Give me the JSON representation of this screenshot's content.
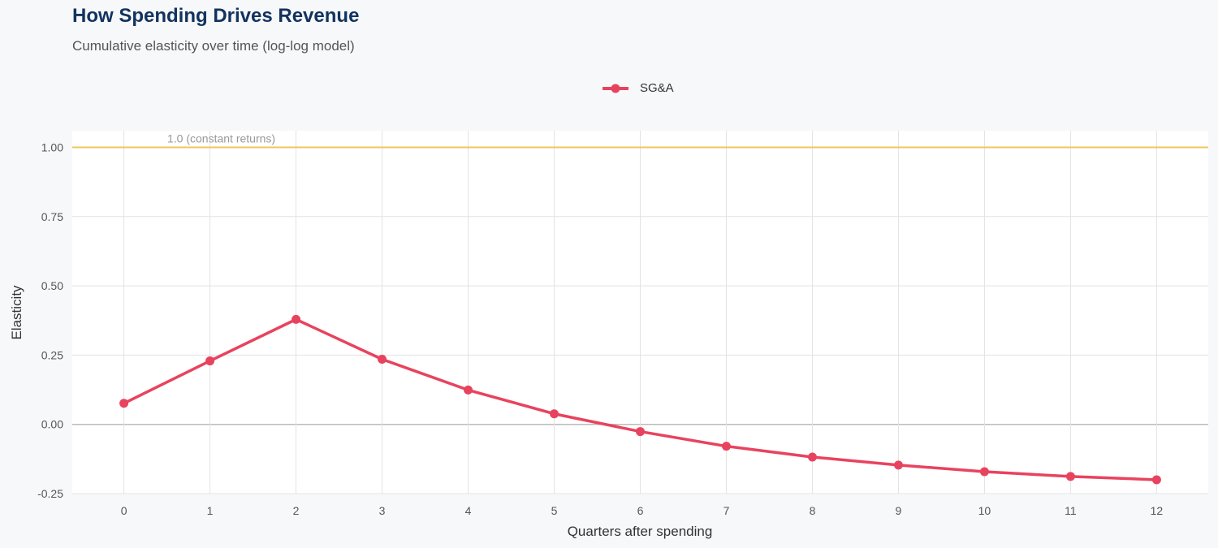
{
  "chart_data": {
    "type": "line",
    "title": "How Spending Drives Revenue",
    "subtitle": "Cumulative elasticity over time (log-log model)",
    "xlabel": "Quarters after spending",
    "ylabel": "Elasticity",
    "x": [
      0,
      1,
      2,
      3,
      4,
      5,
      6,
      7,
      8,
      9,
      10,
      11,
      12
    ],
    "xlim": [
      -0.6,
      12.6
    ],
    "ylim": [
      -0.25,
      1.06
    ],
    "yticks": [
      -0.25,
      0,
      0.25,
      0.5,
      0.75,
      1.0
    ],
    "ytick_labels": [
      "-0.25",
      "0.00",
      "0.25",
      "0.50",
      "0.75",
      "1.00"
    ],
    "grid": true,
    "legend_position": "top",
    "series": [
      {
        "name": "SG&A",
        "color": "#e8435e",
        "values": [
          0.076,
          0.229,
          0.379,
          0.235,
          0.124,
          0.038,
          -0.026,
          -0.079,
          -0.118,
          -0.147,
          -0.171,
          -0.188,
          -0.2
        ]
      }
    ],
    "reference_line": {
      "y": 1.0,
      "label": "1.0 (constant returns)",
      "color": "#f2c55c"
    },
    "zero_line_color": "#bbbbbb"
  }
}
